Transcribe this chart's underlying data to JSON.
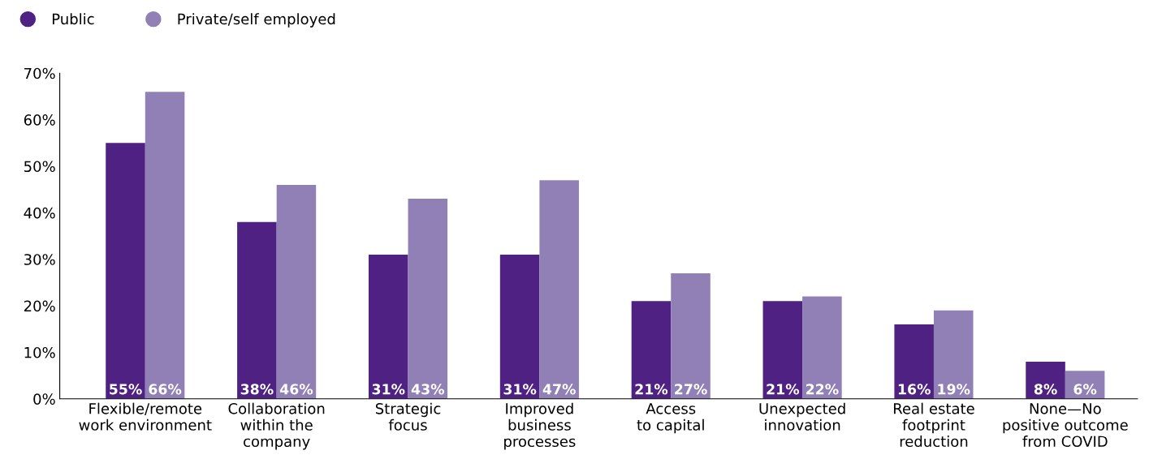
{
  "chart_data": {
    "type": "bar",
    "categories": [
      "Flexible/remote\nwork environment",
      "Collaboration\nwithin the\ncompany",
      "Strategic\nfocus",
      "Improved\nbusiness\nprocesses",
      "Access\nto capital",
      "Unexpected\ninnovation",
      "Real estate\nfootprint\nreduction",
      "None—No\npositive outcome\nfrom COVID"
    ],
    "series": [
      {
        "name": "Public",
        "color": "#4f2182",
        "values": [
          55,
          38,
          31,
          31,
          21,
          21,
          16,
          8
        ],
        "value_labels": [
          "55%",
          "38%",
          "31%",
          "31%",
          "21%",
          "21%",
          "16%",
          "8%"
        ]
      },
      {
        "name": "Private/self employed",
        "color": "#9180b6",
        "values": [
          66,
          46,
          43,
          47,
          27,
          22,
          19,
          6
        ],
        "value_labels": [
          "66%",
          "46%",
          "43%",
          "47%",
          "27%",
          "22%",
          "19%",
          "6%"
        ]
      }
    ],
    "ylim": [
      0,
      70
    ],
    "yticks": [
      {
        "value": 0,
        "label": "0%"
      },
      {
        "value": 10,
        "label": "10%"
      },
      {
        "value": 20,
        "label": "20%"
      },
      {
        "value": 30,
        "label": "30%"
      },
      {
        "value": 40,
        "label": "40%"
      },
      {
        "value": 50,
        "label": "50%"
      },
      {
        "value": 60,
        "label": "60%"
      },
      {
        "value": 70,
        "label": "70%"
      }
    ],
    "grid": false,
    "legend": "top left"
  }
}
